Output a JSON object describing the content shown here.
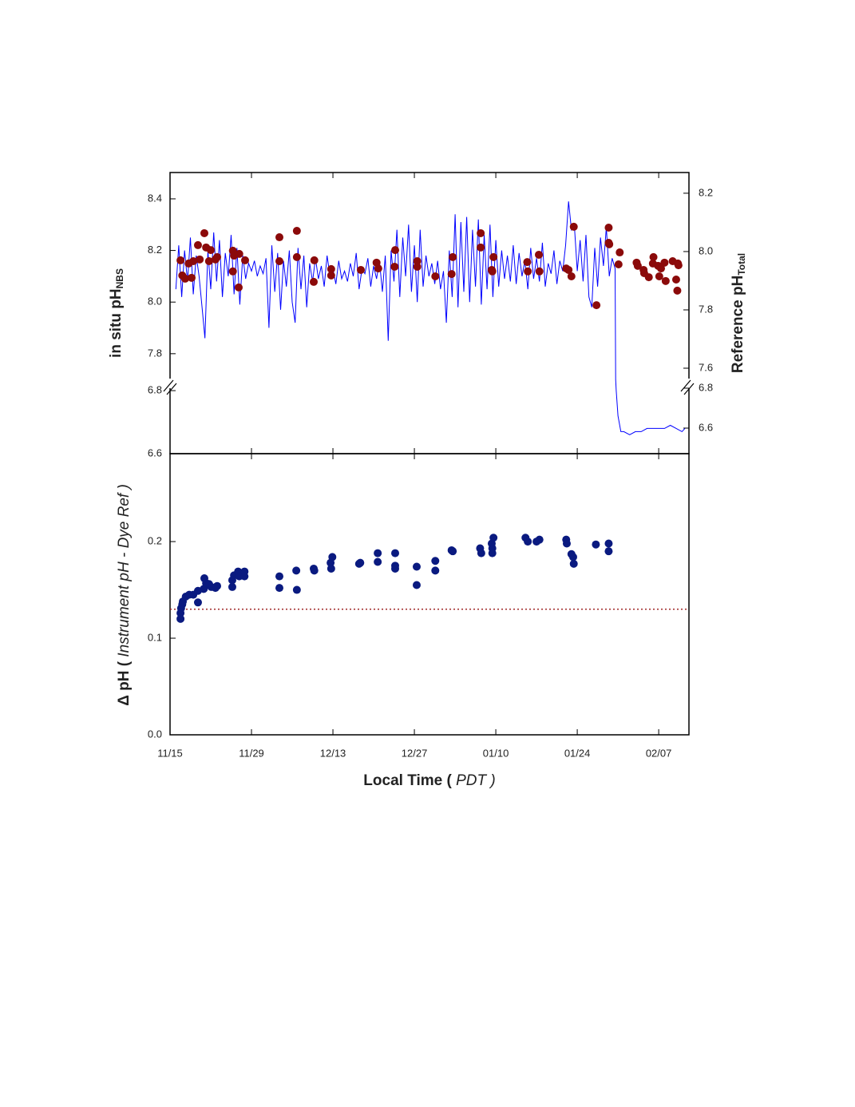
{
  "chart_data": [
    {
      "type": "line",
      "ylabel": [
        "in situ pH",
        "NBS"
      ],
      "y2label": [
        "Reference pH",
        "Total"
      ],
      "xlim": [
        0,
        89.2
      ],
      "ylim": [
        6.6,
        8.502
      ],
      "ybreak": [
        6.823,
        7.685
      ],
      "yticks": [
        6.6,
        6.8,
        7.8,
        {
          "value": 8,
          "label": "8.0"
        },
        8.2,
        8.4
      ],
      "y2lim": [
        6.472,
        8.271
      ],
      "y2break": [
        6.824,
        7.548
      ],
      "y2ticks": [
        6.6,
        6.8,
        7.6,
        7.8,
        {
          "value": 8,
          "label": "8.0"
        },
        8.2
      ],
      "series": [
        {
          "type": "line",
          "color": "#0000ff",
          "x": [
            1,
            1.5,
            2,
            2.5,
            3,
            3.5,
            4,
            4.5,
            5,
            5.5,
            6,
            6.5,
            7,
            7.5,
            8,
            8.5,
            9,
            9.5,
            10,
            10.5,
            11,
            11.5,
            12,
            12.5,
            13,
            13.5,
            14,
            14.5,
            15,
            15.5,
            16,
            16.5,
            17,
            17.5,
            18,
            18.5,
            19,
            19.5,
            20,
            20.5,
            21,
            21.5,
            22,
            22.5,
            23,
            23.5,
            24,
            24.5,
            25,
            25.5,
            26,
            26.5,
            27,
            27.5,
            28,
            28.5,
            29,
            29.5,
            30,
            30.5,
            31,
            31.5,
            32,
            32.5,
            33,
            33.5,
            34,
            34.5,
            35,
            35.5,
            36,
            36.5,
            37,
            37.5,
            38,
            38.5,
            39,
            39.5,
            40,
            40.5,
            41,
            41.5,
            42,
            42.5,
            43,
            43.5,
            44,
            44.5,
            45,
            45.5,
            46,
            46.5,
            47,
            47.5,
            48,
            48.5,
            49,
            49.5,
            50,
            50.5,
            51,
            51.5,
            52,
            52.5,
            53,
            53.5,
            54,
            54.5,
            55,
            55.5,
            56,
            56.5,
            57,
            57.5,
            58,
            58.5,
            59,
            59.5,
            60,
            60.5,
            61,
            61.5,
            62,
            62.5,
            63,
            63.5,
            64,
            64.5,
            65,
            65.5,
            66,
            66.5,
            67,
            67.5,
            68,
            68.5,
            69,
            69.5,
            70,
            70.5,
            71,
            71.5,
            72,
            72.5,
            73,
            73.5,
            74,
            74.5,
            75,
            75.5,
            76,
            76.5,
            76.6,
            76.7,
            77,
            77.5,
            78,
            79,
            80,
            81,
            82,
            83,
            84,
            85,
            86,
            87,
            88,
            88.5
          ],
          "values": [
            8.05,
            8.22,
            8.02,
            8.2,
            8.08,
            8.25,
            8.03,
            8.18,
            8.1,
            7.98,
            7.86,
            8.2,
            8.05,
            8.27,
            8.08,
            8.24,
            8.02,
            8.19,
            8.1,
            8.26,
            8.03,
            8.21,
            7.99,
            8.18,
            8.09,
            8.15,
            8.12,
            8.16,
            8.1,
            8.14,
            8.11,
            8.17,
            7.9,
            8.22,
            8.04,
            8.19,
            7.97,
            8.16,
            8.06,
            8.2,
            8.0,
            7.92,
            8.21,
            8.05,
            8.18,
            7.98,
            8.15,
            8.08,
            8.17,
            8.09,
            8.14,
            8.06,
            8.18,
            8.1,
            8.13,
            8.07,
            8.16,
            8.09,
            8.12,
            8.08,
            8.15,
            8.1,
            8.19,
            8.05,
            8.13,
            8.11,
            8.17,
            8.06,
            8.14,
            8.09,
            8.16,
            8.04,
            8.18,
            7.85,
            8.2,
            8.08,
            8.28,
            8.02,
            8.25,
            8.1,
            8.3,
            8.04,
            8.22,
            8.0,
            8.28,
            8.06,
            8.18,
            8.1,
            8.15,
            8.07,
            8.16,
            8.05,
            8.12,
            7.92,
            8.2,
            8.02,
            8.34,
            7.98,
            8.31,
            8.04,
            8.33,
            8.0,
            8.28,
            8.06,
            8.32,
            7.99,
            8.26,
            8.05,
            8.3,
            8.02,
            8.24,
            8.06,
            8.2,
            8.09,
            8.18,
            8.08,
            8.22,
            8.07,
            8.19,
            8.1,
            8.16,
            8.05,
            8.21,
            8.09,
            8.17,
            8.08,
            8.23,
            8.06,
            8.15,
            8.11,
            8.2,
            8.07,
            8.16,
            8.12,
            8.22,
            8.39,
            8.28,
            8.3,
            8.12,
            8.24,
            8.08,
            8.26,
            8.02,
            7.98,
            8.21,
            8.06,
            8.25,
            8.14,
            8.29,
            8.1,
            8.17,
            8.13,
            7.7,
            6.8,
            6.72,
            6.67,
            6.67,
            6.66,
            6.67,
            6.67,
            6.68,
            6.68,
            6.68,
            6.68,
            6.69,
            6.68,
            6.67,
            6.68
          ]
        },
        {
          "type": "scatter",
          "axis": "y2",
          "color": "#8b0a0a",
          "x": [
            1.8,
            2.1,
            2.6,
            3.2,
            3.7,
            4.0,
            4.8,
            5.1,
            5.9,
            6.2,
            6.7,
            7.0,
            7.8,
            8.1,
            10.8,
            10.8,
            11.0,
            11.9,
            11.8,
            12.9,
            18.8,
            18.8,
            21.8,
            21.8,
            24.7,
            24.8,
            27.7,
            27.7,
            32.8,
            35.5,
            35.8,
            38.7,
            38.6,
            42.5,
            42.5,
            45.6,
            48.4,
            48.6,
            53.4,
            53.4,
            55.3,
            55.4,
            55.6,
            61.4,
            61.5,
            63.4,
            63.5,
            68.1,
            68.5,
            69.0,
            69.4,
            73.3,
            75.4,
            75.4,
            75.5,
            77.3,
            77.1,
            80.2,
            80.4,
            81.4,
            81.5,
            82.3,
            83.1,
            83.0,
            83.9,
            84.1,
            84.4,
            85.2,
            85.0,
            86.4,
            87.3,
            87.0,
            87.2,
            87.4
          ],
          "values": [
            7.97,
            7.918,
            7.907,
            7.959,
            7.91,
            7.967,
            8.022,
            7.973,
            8.063,
            8.014,
            7.967,
            8.005,
            7.973,
            7.981,
            8.003,
            7.932,
            7.986,
            7.992,
            7.877,
            7.97,
            8.049,
            7.967,
            8.071,
            7.981,
            7.896,
            7.97,
            7.94,
            7.918,
            7.937,
            7.962,
            7.942,
            8.005,
            7.948,
            7.967,
            7.948,
            7.915,
            7.923,
            7.981,
            8.063,
            8.014,
            7.937,
            7.932,
            7.981,
            7.964,
            7.932,
            7.989,
            7.932,
            7.942,
            7.937,
            7.915,
            8.085,
            7.816,
            8.082,
            8.03,
            8.025,
            7.997,
            7.956,
            7.962,
            7.951,
            7.937,
            7.926,
            7.912,
            7.981,
            7.959,
            7.951,
            7.915,
            7.942,
            7.899,
            7.962,
            7.967,
            7.959,
            7.904,
            7.866,
            7.953
          ]
        }
      ]
    },
    {
      "type": "scatter",
      "ylabel": [
        "Δ pH  ( ",
        "Instrument pH - Dye Ref",
        " )"
      ],
      "xlabel": [
        "Local Time ( ",
        "PDT",
        " )"
      ],
      "xlim": [
        0,
        89.2
      ],
      "xticks": [
        {
          "value": 0,
          "label": "11/15"
        },
        {
          "value": 14,
          "label": "11/29"
        },
        {
          "value": 28,
          "label": "12/13"
        },
        {
          "value": 42,
          "label": "12/27"
        },
        {
          "value": 56,
          "label": "01/10"
        },
        {
          "value": 70,
          "label": "01/24"
        },
        {
          "value": 84,
          "label": "02/07"
        }
      ],
      "ylim": [
        0,
        0.291
      ],
      "yticks": [
        {
          "value": 0,
          "label": "0.0"
        },
        0.1,
        0.2
      ],
      "hline": {
        "value": 0.13,
        "color": "#a02828"
      },
      "series": [
        {
          "color": "#0a1a80",
          "x": [
            1.8,
            1.8,
            1.9,
            2.1,
            2.2,
            2.7,
            3.3,
            4.0,
            4.8,
            4.8,
            5.8,
            5.9,
            6.2,
            6.7,
            7.1,
            7.8,
            8.1,
            10.7,
            10.7,
            11.0,
            11.7,
            11.9,
            12.8,
            12.8,
            18.8,
            18.8,
            21.7,
            21.8,
            24.7,
            24.8,
            27.6,
            27.7,
            27.9,
            32.5,
            32.7,
            35.7,
            35.7,
            38.7,
            38.7,
            38.7,
            42.4,
            42.4,
            45.6,
            45.6,
            48.4,
            48.6,
            53.3,
            53.5,
            55.3,
            55.4,
            55.4,
            55.6,
            61.1,
            61.5,
            63.0,
            63.5,
            68.1,
            68.2,
            69.0,
            69.3,
            69.4,
            73.2,
            75.4,
            75.4
          ],
          "values": [
            0.12,
            0.126,
            0.131,
            0.135,
            0.138,
            0.143,
            0.145,
            0.145,
            0.149,
            0.137,
            0.151,
            0.162,
            0.157,
            0.156,
            0.153,
            0.152,
            0.154,
            0.153,
            0.16,
            0.165,
            0.169,
            0.164,
            0.169,
            0.164,
            0.164,
            0.152,
            0.17,
            0.15,
            0.172,
            0.17,
            0.178,
            0.172,
            0.184,
            0.177,
            0.178,
            0.188,
            0.179,
            0.188,
            0.175,
            0.172,
            0.174,
            0.155,
            0.18,
            0.17,
            0.191,
            0.19,
            0.193,
            0.188,
            0.198,
            0.193,
            0.188,
            0.204,
            0.204,
            0.2,
            0.2,
            0.202,
            0.202,
            0.198,
            0.187,
            0.184,
            0.177,
            0.197,
            0.198,
            0.19
          ]
        }
      ]
    }
  ]
}
